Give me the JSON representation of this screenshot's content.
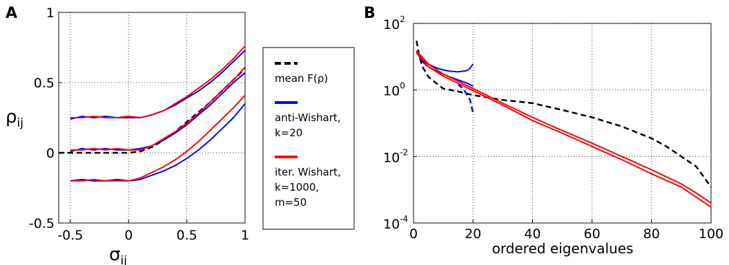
{
  "chart_data": [
    {
      "panel": "A",
      "type": "line",
      "xlabel": "σ",
      "xlabel_sub": "ij",
      "ylabel": "ρ",
      "ylabel_sub": "ij",
      "xlim": [
        -0.6,
        1
      ],
      "ylim": [
        -0.5,
        1
      ],
      "xticks": [
        -0.5,
        0,
        0.5,
        1
      ],
      "xtick_labels": [
        "-0.5",
        "0",
        "0.5",
        "1"
      ],
      "yticks": [
        -0.5,
        0,
        0.5,
        1
      ],
      "ytick_labels": [
        "-0.5",
        "0",
        "0.5",
        "1"
      ],
      "grid": true,
      "series": [
        {
          "name": "mean F(ρ)",
          "color": "#000000",
          "style": "dashed",
          "x": [
            -0.6,
            -0.5,
            -0.3,
            -0.1,
            0,
            0.1,
            0.2,
            0.3,
            0.4,
            0.5,
            0.6,
            0.7,
            0.8,
            0.9,
            1.0
          ],
          "y": [
            0,
            0,
            0,
            0,
            0,
            0.01,
            0.04,
            0.09,
            0.15,
            0.22,
            0.29,
            0.36,
            0.44,
            0.52,
            0.6
          ]
        },
        {
          "name": "anti-Wishart, k=20",
          "color": "#0000ff",
          "style": "solid",
          "x": [
            -0.5,
            -0.4,
            -0.3,
            -0.2,
            -0.1,
            0,
            0.1,
            0.2,
            0.3,
            0.4,
            0.5,
            0.6,
            0.7,
            0.8,
            0.9,
            1.0
          ],
          "y": [
            0.24,
            0.26,
            0.25,
            0.26,
            0.25,
            0.25,
            0.25,
            0.27,
            0.3,
            0.34,
            0.39,
            0.44,
            0.5,
            0.57,
            0.65,
            0.73
          ]
        },
        {
          "name": "iter. Wishart, k=1000, m=50",
          "color": "#ff0000",
          "style": "solid",
          "x": [
            -0.5,
            -0.4,
            -0.3,
            -0.2,
            -0.1,
            0,
            0.1,
            0.2,
            0.3,
            0.4,
            0.5,
            0.6,
            0.7,
            0.8,
            0.9,
            1.0
          ],
          "y": [
            0.25,
            0.25,
            0.26,
            0.25,
            0.25,
            0.26,
            0.25,
            0.27,
            0.3,
            0.35,
            0.4,
            0.46,
            0.52,
            0.59,
            0.67,
            0.76
          ]
        },
        {
          "name": "anti-Wishart, k=20",
          "color": "#0000ff",
          "style": "solid",
          "x": [
            -0.5,
            -0.4,
            -0.3,
            -0.2,
            -0.1,
            0,
            0.1,
            0.2,
            0.3,
            0.4,
            0.5,
            0.6,
            0.7,
            0.8,
            0.9,
            1.0
          ],
          "y": [
            0.01,
            0.03,
            0.02,
            0.03,
            0.02,
            0.02,
            0.03,
            0.05,
            0.09,
            0.14,
            0.2,
            0.27,
            0.34,
            0.42,
            0.5,
            0.57
          ]
        },
        {
          "name": "iter. Wishart, k=1000, m=50",
          "color": "#ff0000",
          "style": "solid",
          "x": [
            -0.5,
            -0.4,
            -0.3,
            -0.2,
            -0.1,
            0,
            0.1,
            0.2,
            0.3,
            0.4,
            0.5,
            0.6,
            0.7,
            0.8,
            0.9,
            1.0
          ],
          "y": [
            0.02,
            0.02,
            0.03,
            0.02,
            0.03,
            0.02,
            0.02,
            0.05,
            0.1,
            0.15,
            0.21,
            0.28,
            0.36,
            0.44,
            0.52,
            0.61
          ]
        },
        {
          "name": "anti-Wishart, k=20",
          "color": "#0000ff",
          "style": "solid",
          "x": [
            -0.5,
            -0.4,
            -0.3,
            -0.2,
            -0.1,
            0,
            0.1,
            0.2,
            0.3,
            0.4,
            0.5,
            0.6,
            0.7,
            0.8,
            0.9,
            1.0
          ],
          "y": [
            -0.2,
            -0.19,
            -0.2,
            -0.2,
            -0.19,
            -0.2,
            -0.19,
            -0.16,
            -0.13,
            -0.09,
            -0.04,
            0.02,
            0.09,
            0.17,
            0.25,
            0.35
          ]
        },
        {
          "name": "iter. Wishart, k=1000, m=50",
          "color": "#ff0000",
          "style": "solid",
          "x": [
            -0.5,
            -0.4,
            -0.3,
            -0.2,
            -0.1,
            0,
            0.1,
            0.2,
            0.3,
            0.4,
            0.5,
            0.6,
            0.7,
            0.8,
            0.9,
            1.0
          ],
          "y": [
            -0.2,
            -0.2,
            -0.19,
            -0.2,
            -0.2,
            -0.2,
            -0.18,
            -0.14,
            -0.1,
            -0.05,
            0.01,
            0.08,
            0.16,
            0.24,
            0.32,
            0.41
          ]
        }
      ]
    },
    {
      "panel": "B",
      "type": "line",
      "xlabel": "ordered eigenvalues",
      "ylabel": "",
      "xlim": [
        0,
        100
      ],
      "ylim": [
        0.0001,
        100
      ],
      "yscale": "log",
      "xticks": [
        0,
        20,
        40,
        60,
        80,
        100
      ],
      "xtick_labels": [
        "0",
        "20",
        "40",
        "60",
        "80",
        "100"
      ],
      "yticks": [
        0.0001,
        0.01,
        1,
        100
      ],
      "ytick_labels": [
        {
          "base": "10",
          "exp": "-4"
        },
        {
          "base": "10",
          "exp": "-2"
        },
        {
          "base": "10",
          "exp": "0"
        },
        {
          "base": "10",
          "exp": "2"
        }
      ],
      "grid": true,
      "series": [
        {
          "name": "mean F(ρ)",
          "color": "#000000",
          "style": "dashed",
          "x": [
            1,
            2,
            3,
            5,
            8,
            10,
            15,
            20,
            30,
            40,
            50,
            60,
            70,
            80,
            85,
            90,
            95,
            100
          ],
          "y": [
            30,
            10,
            5,
            2.5,
            1.5,
            1.1,
            0.9,
            0.7,
            0.5,
            0.4,
            0.25,
            0.15,
            0.08,
            0.035,
            0.02,
            0.01,
            0.005,
            0.0012
          ]
        },
        {
          "name": "anti-Wishart, k=20",
          "color": "#0000ff",
          "style": "solid",
          "x": [
            1,
            3,
            5,
            8,
            10,
            12,
            15,
            18,
            19,
            20
          ],
          "y": [
            15,
            8,
            6,
            4.5,
            4,
            3.7,
            3.5,
            3.8,
            4.5,
            6
          ]
        },
        {
          "name": "anti-Wishart, k=20",
          "color": "#0000ff",
          "style": "solid",
          "x": [
            1,
            3,
            5,
            8,
            10,
            12,
            15,
            18,
            20
          ],
          "y": [
            14,
            7,
            5,
            3.5,
            3,
            2.5,
            2,
            1.6,
            1.3
          ]
        },
        {
          "name": "anti-Wishart, k=20",
          "color": "#0000ff",
          "style": "dashed",
          "x": [
            15,
            17,
            19,
            20
          ],
          "y": [
            1.5,
            1,
            0.5,
            0.2
          ]
        },
        {
          "name": "iter. Wishart, k=1000, m=50",
          "color": "#ff0000",
          "style": "solid",
          "x": [
            1,
            5,
            10,
            20,
            30,
            40,
            50,
            60,
            70,
            80,
            90,
            95,
            100
          ],
          "y": [
            15,
            6,
            3,
            1.1,
            0.4,
            0.15,
            0.06,
            0.025,
            0.01,
            0.004,
            0.0015,
            0.0008,
            0.0004
          ]
        },
        {
          "name": "iter. Wishart, k=1000, m=50",
          "color": "#ff0000",
          "style": "solid",
          "x": [
            1,
            5,
            10,
            20,
            30,
            40,
            50,
            60,
            70,
            80,
            90,
            95,
            100
          ],
          "y": [
            13,
            5,
            2.6,
            0.95,
            0.35,
            0.12,
            0.05,
            0.02,
            0.008,
            0.003,
            0.0012,
            0.0006,
            0.0003
          ]
        }
      ]
    }
  ],
  "panels": {
    "a_label": "A",
    "b_label": "B"
  },
  "legend": {
    "items": [
      {
        "lines": [
          "mean F(ρ)"
        ],
        "color": "#000000",
        "style": "dashed"
      },
      {
        "lines": [
          "anti-Wishart,",
          "k=20"
        ],
        "color": "#0000ff",
        "style": "solid"
      },
      {
        "lines": [
          "iter. Wishart,",
          "k=1000,",
          "m=50"
        ],
        "color": "#ff0000",
        "style": "solid"
      }
    ]
  }
}
